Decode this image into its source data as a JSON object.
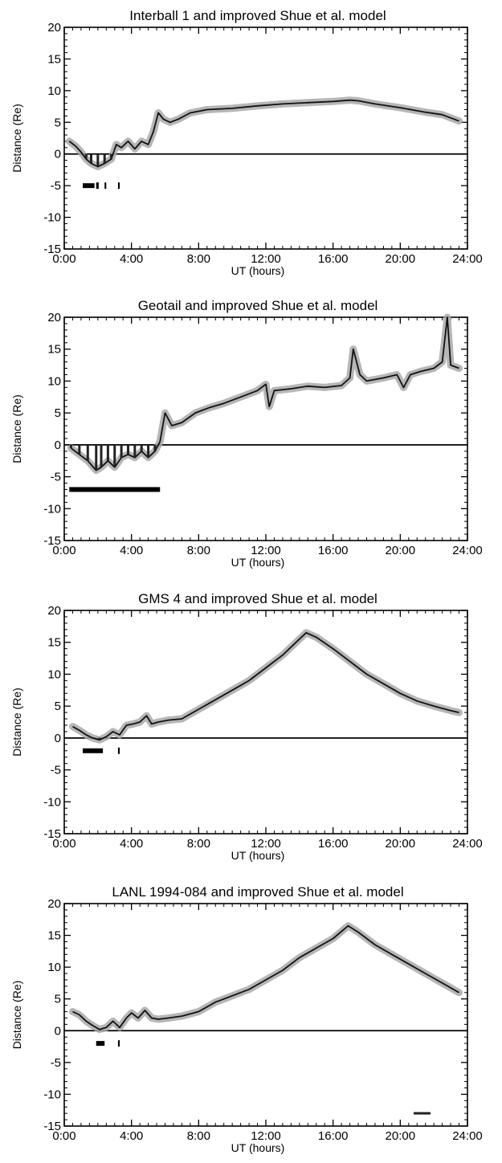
{
  "chart_data": [
    {
      "type": "line",
      "title": "Interball 1 and improved Shue et al. model",
      "xlabel": "UT (hours)",
      "ylabel": "Distance (Re)",
      "xlim": [
        0,
        24
      ],
      "ylim": [
        -15,
        20
      ],
      "xticks": [
        0,
        4,
        8,
        12,
        16,
        20,
        24
      ],
      "xtick_labels": [
        "0:00",
        "4:00",
        "8:00",
        "12:00",
        "16:00",
        "20:00",
        "24:00"
      ],
      "yticks": [
        -15,
        -10,
        -5,
        0,
        5,
        10,
        15,
        20
      ],
      "ytick_labels": [
        "-15",
        "-10",
        "-5",
        "0",
        "5",
        "10",
        "15",
        "20"
      ],
      "grid": false,
      "series": [
        {
          "x": [
            0.3,
            0.7,
            1.0,
            1.3,
            1.6,
            2.0,
            2.4,
            2.8,
            3.1,
            3.4,
            3.8,
            4.2,
            4.6,
            5.0,
            5.3,
            5.6,
            5.9,
            6.3,
            6.8,
            7.5,
            8.5,
            10.0,
            11.5,
            13.0,
            14.5,
            16.0,
            17.0,
            17.5,
            18.5,
            20.0,
            21.5,
            22.5,
            23.5
          ],
          "y": [
            2.0,
            1.2,
            0.3,
            -0.8,
            -1.5,
            -2.0,
            -1.5,
            -0.8,
            1.5,
            1.0,
            2.0,
            0.8,
            2.0,
            1.5,
            3.5,
            6.5,
            5.5,
            5.0,
            5.5,
            6.5,
            7.0,
            7.2,
            7.6,
            7.9,
            8.1,
            8.3,
            8.5,
            8.4,
            7.9,
            7.3,
            6.6,
            6.2,
            5.2
          ]
        }
      ],
      "markers": {
        "y": -5,
        "intervals": [
          [
            1.1,
            1.8
          ],
          [
            1.9,
            2.05
          ],
          [
            2.4,
            2.5
          ],
          [
            3.2,
            3.3
          ]
        ]
      }
    },
    {
      "type": "line",
      "title": "Geotail and improved Shue et al. model",
      "xlabel": "UT (hours)",
      "ylabel": "Distance (Re)",
      "xlim": [
        0,
        24
      ],
      "ylim": [
        -15,
        20
      ],
      "xticks": [
        0,
        4,
        8,
        12,
        16,
        20,
        24
      ],
      "xtick_labels": [
        "0:00",
        "4:00",
        "8:00",
        "12:00",
        "16:00",
        "20:00",
        "24:00"
      ],
      "yticks": [
        -15,
        -10,
        -5,
        0,
        5,
        10,
        15,
        20
      ],
      "ytick_labels": [
        "-15",
        "-10",
        "-5",
        "0",
        "5",
        "10",
        "15",
        "20"
      ],
      "grid": false,
      "series": [
        {
          "x": [
            0.4,
            0.9,
            1.4,
            1.9,
            2.2,
            2.6,
            3.0,
            3.4,
            3.8,
            4.2,
            4.6,
            5.0,
            5.4,
            5.7,
            6.0,
            6.4,
            7.0,
            7.8,
            8.6,
            9.5,
            10.5,
            11.5,
            12.0,
            12.2,
            12.5,
            13.5,
            14.5,
            15.5,
            16.5,
            17.0,
            17.2,
            17.6,
            18.0,
            19.0,
            19.8,
            20.2,
            20.6,
            21.2,
            22.0,
            22.5,
            22.8,
            23.0,
            23.5
          ],
          "y": [
            -0.5,
            -1.5,
            -2.5,
            -4.0,
            -3.5,
            -2.5,
            -3.5,
            -2.0,
            -1.5,
            -2.0,
            -1.0,
            -2.0,
            -1.0,
            0.5,
            5.0,
            3.0,
            3.5,
            5.0,
            5.8,
            6.5,
            7.5,
            8.5,
            9.5,
            6.0,
            8.5,
            8.8,
            9.2,
            9.0,
            9.3,
            10.5,
            15.0,
            11.0,
            10.0,
            10.5,
            11.0,
            9.0,
            11.0,
            11.5,
            12.0,
            13.0,
            20.0,
            12.5,
            12.0
          ]
        }
      ],
      "markers": {
        "y": -7,
        "intervals": [
          [
            0.3,
            5.7
          ]
        ]
      }
    },
    {
      "type": "line",
      "title": "GMS 4 and improved Shue et al. model",
      "xlabel": "UT (hours)",
      "ylabel": "Distance (Re)",
      "xlim": [
        0,
        24
      ],
      "ylim": [
        -15,
        20
      ],
      "xticks": [
        0,
        4,
        8,
        12,
        16,
        20,
        24
      ],
      "xtick_labels": [
        "0:00",
        "4:00",
        "8:00",
        "12:00",
        "16:00",
        "20:00",
        "24:00"
      ],
      "yticks": [
        -15,
        -10,
        -5,
        0,
        5,
        10,
        15,
        20
      ],
      "ytick_labels": [
        "-15",
        "-10",
        "-5",
        "0",
        "5",
        "10",
        "15",
        "20"
      ],
      "grid": false,
      "series": [
        {
          "x": [
            0.5,
            0.9,
            1.3,
            1.7,
            2.1,
            2.5,
            2.9,
            3.3,
            3.7,
            4.1,
            4.5,
            4.9,
            5.2,
            5.6,
            6.2,
            7.0,
            8.0,
            9.0,
            10.0,
            11.0,
            12.0,
            13.0,
            14.0,
            14.4,
            15.0,
            16.0,
            17.0,
            18.0,
            19.0,
            20.0,
            21.0,
            22.0,
            23.0,
            23.5
          ],
          "y": [
            1.8,
            1.2,
            0.5,
            0.0,
            -0.3,
            0.2,
            1.0,
            0.5,
            2.0,
            2.2,
            2.5,
            3.5,
            2.2,
            2.5,
            2.8,
            3.0,
            4.5,
            6.0,
            7.5,
            9.0,
            11.0,
            13.0,
            15.5,
            16.5,
            15.8,
            14.0,
            12.0,
            10.0,
            8.5,
            7.0,
            5.8,
            5.0,
            4.3,
            4.0
          ]
        }
      ],
      "markers": {
        "y": -2,
        "intervals": [
          [
            1.1,
            2.3
          ],
          [
            3.2,
            3.3
          ]
        ]
      }
    },
    {
      "type": "line",
      "title": "LANL 1994-084 and improved Shue et al. model",
      "xlabel": "UT (hours)",
      "ylabel": "Distance (Re)",
      "xlim": [
        0,
        24
      ],
      "ylim": [
        -15,
        20
      ],
      "xticks": [
        0,
        4,
        8,
        12,
        16,
        20,
        24
      ],
      "xtick_labels": [
        "0:00",
        "4:00",
        "8:00",
        "12:00",
        "16:00",
        "20:00",
        "24:00"
      ],
      "yticks": [
        -15,
        -10,
        -5,
        0,
        5,
        10,
        15,
        20
      ],
      "ytick_labels": [
        "-15",
        "-10",
        "-5",
        "0",
        "5",
        "10",
        "15",
        "20"
      ],
      "grid": false,
      "series": [
        {
          "x": [
            0.5,
            0.9,
            1.3,
            1.7,
            2.1,
            2.5,
            2.9,
            3.3,
            3.7,
            4.0,
            4.4,
            4.8,
            5.2,
            5.6,
            6.2,
            7.0,
            8.0,
            9.0,
            10.0,
            11.0,
            12.0,
            13.0,
            14.0,
            15.0,
            16.0,
            16.9,
            17.5,
            18.5,
            19.5,
            20.5,
            21.5,
            22.5,
            23.5
          ],
          "y": [
            3.0,
            2.5,
            1.5,
            0.8,
            0.2,
            0.5,
            1.5,
            0.5,
            2.0,
            2.8,
            2.0,
            3.2,
            2.0,
            1.8,
            2.0,
            2.3,
            3.0,
            4.5,
            5.5,
            6.5,
            8.0,
            9.5,
            11.5,
            13.0,
            14.5,
            16.5,
            15.5,
            13.5,
            12.0,
            10.5,
            9.0,
            7.5,
            6.0
          ]
        }
      ],
      "markers": {
        "y": -2,
        "intervals": [
          [
            1.9,
            2.4
          ],
          [
            3.2,
            3.3
          ]
        ]
      },
      "annotation_segment": {
        "x": [
          20.8,
          21.8
        ],
        "y": -13
      }
    }
  ]
}
